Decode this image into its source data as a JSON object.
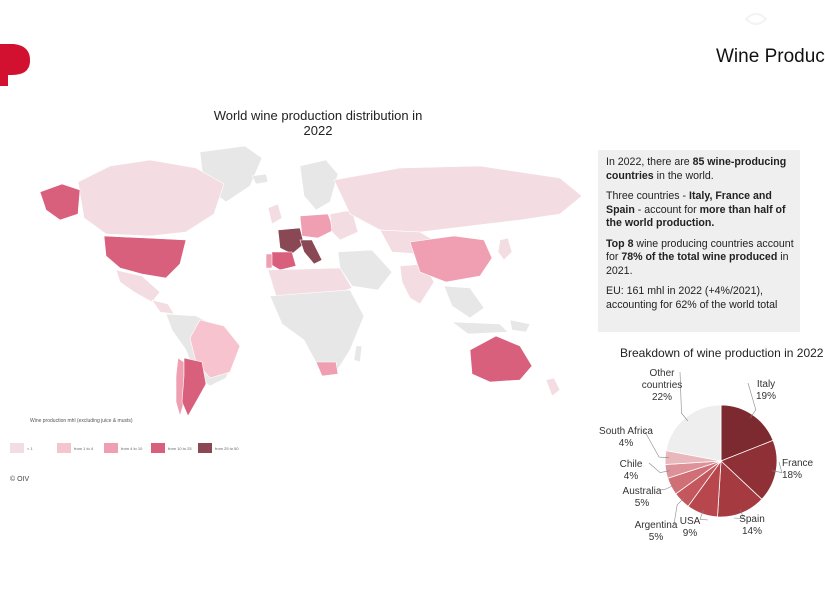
{
  "header": {
    "page_title": "Wine Produc",
    "logo_icon": "brand-logo-icon",
    "corner_icon": "corner-mark-icon"
  },
  "map": {
    "title": "World wine production distribution in 2022",
    "legend_title": "Wine production mhl (excluding juice & musts)",
    "legend": [
      {
        "label": "< 1",
        "color": "#f4dde2"
      },
      {
        "label": "from 1 to 4",
        "color": "#f6c3ce"
      },
      {
        "label": "from 4 to 10",
        "color": "#ef9fb1"
      },
      {
        "label": "from 10 to 25",
        "color": "#d9607c"
      },
      {
        "label": "from 25 to 50",
        "color": "#8a4855"
      }
    ],
    "colors": {
      "no_data": "#e7e7e7",
      "lt_1": "#f4dde2",
      "from_1_to_4": "#f6c3ce",
      "from_4_to_10": "#ef9fb1",
      "from_10_to_25": "#d9607c",
      "from_25_to_50": "#8a4855"
    },
    "copyright": "© OIV"
  },
  "info": {
    "p1_a": "In 2022, there are ",
    "p1_b": "85 wine-producing countries",
    "p1_c": " in the world.",
    "p2_a": "Three countries - ",
    "p2_b": "Italy, France and Spain",
    "p2_c": " - account for ",
    "p2_d": "more than half of the world production.",
    "p3_a": "Top 8",
    "p3_b": " wine producing countries account for ",
    "p3_c": "78% of the total wine produced",
    "p3_d": " in 2021.",
    "p4_a": "EU: 161 mhl in 2022 (+4%/2021),",
    "p4_b": "accounting for 62% of the world total"
  },
  "chart_data": {
    "type": "pie",
    "title": "Breakdown of wine production in 2022",
    "slices": [
      {
        "label": "Italy",
        "percent_label": "19%",
        "value": 19,
        "color": "#7c2a30"
      },
      {
        "label": "France",
        "percent_label": "18%",
        "value": 18,
        "color": "#8f3036"
      },
      {
        "label": "Spain",
        "percent_label": "14%",
        "value": 14,
        "color": "#a53a40"
      },
      {
        "label": "USA",
        "percent_label": "9%",
        "value": 9,
        "color": "#b7474d"
      },
      {
        "label": "Argentina",
        "percent_label": "5%",
        "value": 5,
        "color": "#c4575d"
      },
      {
        "label": "Australia",
        "percent_label": "5%",
        "value": 5,
        "color": "#d06f75"
      },
      {
        "label": "Chile",
        "percent_label": "4%",
        "value": 4,
        "color": "#dc9298"
      },
      {
        "label": "South Africa",
        "percent_label": "4%",
        "value": 4,
        "color": "#e8b8bc"
      },
      {
        "label": "Other countries",
        "label_lines": [
          "Other",
          "countries"
        ],
        "percent_label": "22%",
        "value": 22,
        "color": "#eeeeee"
      }
    ]
  }
}
